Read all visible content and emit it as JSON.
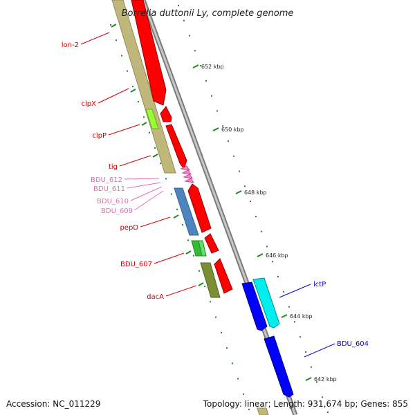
{
  "title": "Borrelia duttonii Ly, complete genome",
  "footer": {
    "accession": "Accession: NC_011229",
    "summary": "Topology: linear; Length: 931,674 bp; Genes: 855"
  },
  "colors": {
    "forward": "#ff0000",
    "reverse": "#0000ff",
    "backbone": "#8c8c8c",
    "tick": "#1a8a1a",
    "label_red": "#cc0000",
    "label_pink": "#e070b0",
    "label_blue": "#0000cc"
  },
  "ticks": [
    {
      "label": "652 kbp"
    },
    {
      "label": "650 kbp"
    },
    {
      "label": "648 kbp"
    },
    {
      "label": "646 kbp"
    },
    {
      "label": "644 kbp"
    },
    {
      "label": "642 kbp"
    }
  ],
  "gene_labels": [
    {
      "name": "lon-2",
      "color": "red"
    },
    {
      "name": "clpX",
      "color": "red"
    },
    {
      "name": "clpP",
      "color": "red"
    },
    {
      "name": "tig",
      "color": "red"
    },
    {
      "name": "BDU_612",
      "color": "pink"
    },
    {
      "name": "BDU_611",
      "color": "pink"
    },
    {
      "name": "BDU_610",
      "color": "pink"
    },
    {
      "name": "BDU_609",
      "color": "pink"
    },
    {
      "name": "pepD",
      "color": "red"
    },
    {
      "name": "BDU_607",
      "color": "red"
    },
    {
      "name": "dacA",
      "color": "red"
    },
    {
      "name": "lctP",
      "color": "blue"
    },
    {
      "name": "BDU_604",
      "color": "blue"
    }
  ]
}
